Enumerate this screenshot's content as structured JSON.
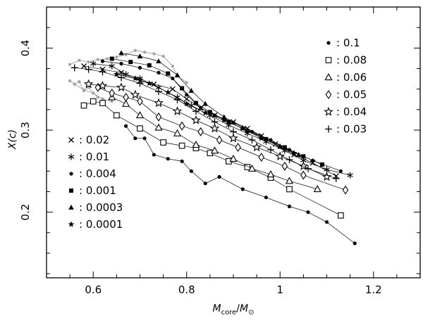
{
  "chart_data": {
    "type": "scatter",
    "xlabel_main": "M",
    "xlabel_sub_core": "core",
    "xlabel_slash": "/",
    "xlabel_sub_sun": "⊙",
    "ylabel": "X(c)",
    "xlim": [
      0.5,
      1.3
    ],
    "ylim": [
      0.12,
      0.45
    ],
    "xticks": [
      "0.6",
      "0.8",
      "1",
      "1.2"
    ],
    "xtick_values": [
      0.6,
      0.8,
      1.0,
      1.2
    ],
    "yticks": [
      "0.2",
      "0.3",
      "0.4"
    ],
    "ytick_values": [
      0.2,
      0.3,
      0.4
    ],
    "grid": false,
    "legend_placement": [
      "top-right",
      "lower-left"
    ],
    "series": [
      {
        "name": "0.1",
        "marker": "dot",
        "color": "#000000",
        "points": [
          [
            0.67,
            0.305
          ],
          [
            0.69,
            0.29
          ],
          [
            0.71,
            0.29
          ],
          [
            0.73,
            0.27
          ],
          [
            0.76,
            0.265
          ],
          [
            0.79,
            0.262
          ],
          [
            0.81,
            0.25
          ],
          [
            0.84,
            0.235
          ],
          [
            0.87,
            0.243
          ],
          [
            0.92,
            0.228
          ],
          [
            0.97,
            0.218
          ],
          [
            1.02,
            0.207
          ],
          [
            1.06,
            0.2
          ],
          [
            1.1,
            0.188
          ],
          [
            1.16,
            0.162
          ]
        ]
      },
      {
        "name": "0.08",
        "marker": "square-open",
        "color": "#000000",
        "points": [
          [
            0.58,
            0.33
          ],
          [
            0.6,
            0.335
          ],
          [
            0.62,
            0.333
          ],
          [
            0.65,
            0.318
          ],
          [
            0.7,
            0.302
          ],
          [
            0.75,
            0.285
          ],
          [
            0.79,
            0.281
          ],
          [
            0.82,
            0.278
          ],
          [
            0.85,
            0.272
          ],
          [
            0.89,
            0.262
          ],
          [
            0.93,
            0.255
          ],
          [
            0.98,
            0.242
          ],
          [
            1.02,
            0.228
          ],
          [
            1.13,
            0.196
          ]
        ]
      },
      {
        "name": "0.06",
        "marker": "triangle-open",
        "color": "#000000",
        "points": [
          [
            0.64,
            0.34
          ],
          [
            0.67,
            0.332
          ],
          [
            0.7,
            0.318
          ],
          [
            0.74,
            0.303
          ],
          [
            0.78,
            0.296
          ],
          [
            0.82,
            0.282
          ],
          [
            0.86,
            0.275
          ],
          [
            0.9,
            0.265
          ],
          [
            0.94,
            0.253
          ],
          [
            0.98,
            0.246
          ],
          [
            1.02,
            0.238
          ],
          [
            1.08,
            0.228
          ]
        ]
      },
      {
        "name": "0.05",
        "marker": "diamond-open",
        "color": "#000000",
        "points": [
          [
            0.61,
            0.352
          ],
          [
            0.64,
            0.345
          ],
          [
            0.67,
            0.34
          ],
          [
            0.7,
            0.335
          ],
          [
            0.74,
            0.316
          ],
          [
            0.79,
            0.305
          ],
          [
            0.83,
            0.298
          ],
          [
            0.87,
            0.288
          ],
          [
            0.91,
            0.279
          ],
          [
            0.96,
            0.267
          ],
          [
            1.01,
            0.256
          ],
          [
            1.05,
            0.245
          ],
          [
            1.14,
            0.227
          ]
        ]
      },
      {
        "name": "0.04",
        "marker": "star-open",
        "color": "#000000",
        "points": [
          [
            0.59,
            0.356
          ],
          [
            0.62,
            0.354
          ],
          [
            0.66,
            0.352
          ],
          [
            0.69,
            0.343
          ],
          [
            0.74,
            0.333
          ],
          [
            0.78,
            0.323
          ],
          [
            0.82,
            0.312
          ],
          [
            0.86,
            0.302
          ],
          [
            0.9,
            0.29
          ],
          [
            0.95,
            0.279
          ],
          [
            1.0,
            0.268
          ],
          [
            1.05,
            0.256
          ],
          [
            1.1,
            0.243
          ]
        ]
      },
      {
        "name": "0.03",
        "marker": "plus",
        "color": "#000000",
        "points": [
          [
            0.56,
            0.376
          ],
          [
            0.59,
            0.374
          ],
          [
            0.62,
            0.371
          ],
          [
            0.66,
            0.364
          ],
          [
            0.7,
            0.357
          ],
          [
            0.74,
            0.347
          ],
          [
            0.78,
            0.337
          ],
          [
            0.82,
            0.323
          ],
          [
            0.86,
            0.31
          ],
          [
            0.9,
            0.298
          ],
          [
            0.94,
            0.288
          ],
          [
            0.98,
            0.276
          ],
          [
            1.02,
            0.264
          ],
          [
            1.06,
            0.253
          ],
          [
            1.12,
            0.241
          ]
        ]
      },
      {
        "name": "0.02",
        "marker": "cross",
        "color": "#000000",
        "points": [
          [
            0.58,
            0.378
          ],
          [
            0.62,
            0.374
          ],
          [
            0.66,
            0.37
          ],
          [
            0.7,
            0.36
          ],
          [
            0.73,
            0.356
          ],
          [
            0.77,
            0.35
          ],
          [
            0.8,
            0.338
          ],
          [
            0.83,
            0.327
          ],
          [
            0.86,
            0.318
          ],
          [
            0.9,
            0.31
          ],
          [
            0.93,
            0.302
          ],
          [
            0.96,
            0.293
          ],
          [
            0.99,
            0.283
          ],
          [
            1.03,
            0.27
          ],
          [
            1.07,
            0.26
          ],
          [
            1.12,
            0.244
          ]
        ]
      },
      {
        "name": "0.01",
        "marker": "asterisk",
        "color": "#000000",
        "points": [
          [
            0.6,
            0.381
          ],
          [
            0.64,
            0.378
          ],
          [
            0.67,
            0.368
          ],
          [
            0.7,
            0.363
          ],
          [
            0.74,
            0.352
          ],
          [
            0.78,
            0.34
          ],
          [
            0.81,
            0.33
          ],
          [
            0.85,
            0.318
          ],
          [
            0.89,
            0.306
          ],
          [
            0.93,
            0.296
          ],
          [
            0.97,
            0.286
          ],
          [
            1.01,
            0.275
          ],
          [
            1.05,
            0.263
          ],
          [
            1.1,
            0.252
          ],
          [
            1.15,
            0.245
          ]
        ]
      },
      {
        "name": "0.004",
        "marker": "dot",
        "color": "#000000",
        "points": [
          [
            0.62,
            0.384
          ],
          [
            0.66,
            0.381
          ],
          [
            0.7,
            0.376
          ],
          [
            0.74,
            0.37
          ],
          [
            0.77,
            0.363
          ],
          [
            0.8,
            0.343
          ],
          [
            0.83,
            0.327
          ],
          [
            0.86,
            0.318
          ],
          [
            0.9,
            0.309
          ],
          [
            0.94,
            0.298
          ],
          [
            0.98,
            0.288
          ],
          [
            1.02,
            0.276
          ],
          [
            1.07,
            0.263
          ],
          [
            1.13,
            0.25
          ]
        ]
      },
      {
        "name": "0.001",
        "marker": "square-filled",
        "color": "#000000",
        "points": [
          [
            0.64,
            0.387
          ],
          [
            0.68,
            0.383
          ],
          [
            0.72,
            0.379
          ],
          [
            0.76,
            0.369
          ],
          [
            0.79,
            0.351
          ],
          [
            0.82,
            0.333
          ],
          [
            0.85,
            0.322
          ],
          [
            0.89,
            0.31
          ],
          [
            0.93,
            0.299
          ],
          [
            0.97,
            0.289
          ],
          [
            1.01,
            0.279
          ],
          [
            1.05,
            0.268
          ],
          [
            1.09,
            0.258
          ]
        ]
      },
      {
        "name": "0.0003",
        "marker": "triangle-filled",
        "color": "#000000",
        "points": [
          [
            0.66,
            0.394
          ],
          [
            0.7,
            0.39
          ],
          [
            0.74,
            0.384
          ],
          [
            0.78,
            0.367
          ],
          [
            0.81,
            0.348
          ],
          [
            0.84,
            0.332
          ],
          [
            0.88,
            0.316
          ],
          [
            0.92,
            0.303
          ],
          [
            0.96,
            0.292
          ],
          [
            1.0,
            0.28
          ],
          [
            1.04,
            0.27
          ]
        ]
      },
      {
        "name": "0.0001",
        "marker": "star-filled",
        "color": "#000000",
        "points": [
          [
            0.65,
            0.368
          ],
          [
            0.69,
            0.363
          ],
          [
            0.72,
            0.357
          ],
          [
            0.76,
            0.346
          ],
          [
            0.8,
            0.332
          ],
          [
            0.84,
            0.321
          ],
          [
            0.88,
            0.312
          ],
          [
            0.92,
            0.302
          ],
          [
            0.96,
            0.29
          ],
          [
            1.0,
            0.28
          ],
          [
            1.03,
            0.272
          ]
        ]
      }
    ],
    "grey_tracks": [
      {
        "points": [
          [
            0.55,
            0.36
          ],
          [
            0.56,
            0.356
          ],
          [
            0.57,
            0.359
          ],
          [
            0.58,
            0.348
          ],
          [
            0.59,
            0.352
          ],
          [
            0.6,
            0.345
          ],
          [
            0.61,
            0.34
          ]
        ]
      },
      {
        "points": [
          [
            0.55,
            0.38
          ],
          [
            0.57,
            0.385
          ],
          [
            0.59,
            0.383
          ],
          [
            0.61,
            0.386
          ],
          [
            0.63,
            0.387
          ],
          [
            0.65,
            0.389
          ],
          [
            0.67,
            0.392
          ],
          [
            0.69,
            0.397
          ],
          [
            0.71,
            0.395
          ],
          [
            0.73,
            0.393
          ],
          [
            0.75,
            0.39
          ],
          [
            0.77,
            0.378
          ],
          [
            0.78,
            0.366
          ],
          [
            0.8,
            0.358
          ]
        ]
      },
      {
        "points": [
          [
            0.56,
            0.356
          ],
          [
            0.58,
            0.349
          ],
          [
            0.6,
            0.345
          ],
          [
            0.62,
            0.338
          ],
          [
            0.64,
            0.335
          ]
        ]
      }
    ],
    "legend_right": [
      {
        "symbol": "dot",
        "label": "0.1"
      },
      {
        "symbol": "square-open",
        "label": "0.08"
      },
      {
        "symbol": "triangle-open",
        "label": "0.06"
      },
      {
        "symbol": "diamond-open",
        "label": "0.05"
      },
      {
        "symbol": "star-open",
        "label": "0.04"
      },
      {
        "symbol": "plus",
        "label": "0.03"
      }
    ],
    "legend_left": [
      {
        "symbol": "cross",
        "label": "0.02"
      },
      {
        "symbol": "asterisk",
        "label": "0.01"
      },
      {
        "symbol": "dot",
        "label": "0.004"
      },
      {
        "symbol": "square-filled",
        "label": "0.001"
      },
      {
        "symbol": "triangle-filled",
        "label": "0.0003"
      },
      {
        "symbol": "star-filled",
        "label": "0.0001"
      }
    ],
    "legend_colon": ":",
    "line_color": "#000000",
    "grey_color": "#a6a6a6"
  }
}
